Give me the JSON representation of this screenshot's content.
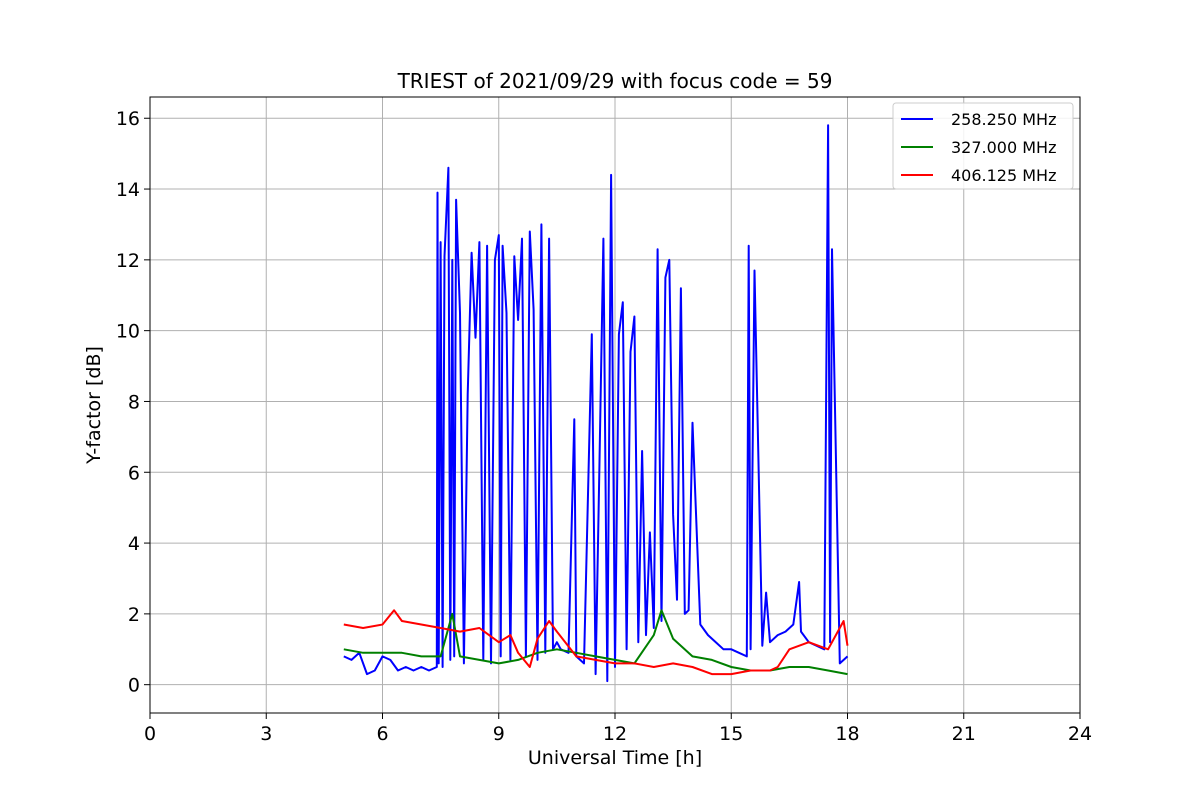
{
  "chart_data": {
    "type": "line",
    "title": "TRIEST of 2021/09/29 with focus code = 59",
    "xlabel": "Universal Time [h]",
    "ylabel": "Y-factor [dB]",
    "xlim": [
      0,
      24
    ],
    "ylim": [
      -0.8,
      16.6
    ],
    "xticks": [
      0,
      3,
      6,
      9,
      12,
      15,
      18,
      21,
      24
    ],
    "yticks": [
      0,
      2,
      4,
      6,
      8,
      10,
      12,
      14,
      16
    ],
    "grid": true,
    "legend_position": "top-right",
    "series": [
      {
        "name": "258.250 MHz",
        "color": "#0000ff",
        "x": [
          5.0,
          5.2,
          5.4,
          5.6,
          5.8,
          6.0,
          6.2,
          6.4,
          6.6,
          6.8,
          7.0,
          7.2,
          7.4,
          7.42,
          7.45,
          7.5,
          7.55,
          7.6,
          7.7,
          7.75,
          7.8,
          7.85,
          7.9,
          8.0,
          8.1,
          8.2,
          8.3,
          8.4,
          8.5,
          8.6,
          8.7,
          8.8,
          8.9,
          9.0,
          9.05,
          9.1,
          9.2,
          9.3,
          9.4,
          9.5,
          9.6,
          9.7,
          9.8,
          9.9,
          10.0,
          10.1,
          10.2,
          10.3,
          10.4,
          10.5,
          10.6,
          10.8,
          10.95,
          11.0,
          11.2,
          11.4,
          11.5,
          11.6,
          11.7,
          11.8,
          11.9,
          12.0,
          12.1,
          12.2,
          12.3,
          12.4,
          12.5,
          12.6,
          12.7,
          12.8,
          12.9,
          13.0,
          13.1,
          13.2,
          13.3,
          13.4,
          13.5,
          13.6,
          13.7,
          13.8,
          13.9,
          14.0,
          14.2,
          14.4,
          14.6,
          14.8,
          15.0,
          15.2,
          15.4,
          15.45,
          15.5,
          15.6,
          15.8,
          15.9,
          16.0,
          16.2,
          16.4,
          16.6,
          16.75,
          16.8,
          17.0,
          17.2,
          17.4,
          17.5,
          17.55,
          17.6,
          17.8,
          18.0
        ],
        "values": [
          0.8,
          0.7,
          0.9,
          0.3,
          0.4,
          0.8,
          0.7,
          0.4,
          0.5,
          0.4,
          0.5,
          0.4,
          0.5,
          13.9,
          0.6,
          12.5,
          0.5,
          12.1,
          14.6,
          0.7,
          12.0,
          0.8,
          13.7,
          10.5,
          0.6,
          8.2,
          12.2,
          9.8,
          12.5,
          0.7,
          12.4,
          0.6,
          12.0,
          12.7,
          0.8,
          12.4,
          10.5,
          0.7,
          12.1,
          10.3,
          12.6,
          0.8,
          12.8,
          10.6,
          0.7,
          13.0,
          0.9,
          12.6,
          1.0,
          1.2,
          1.0,
          0.9,
          7.5,
          0.8,
          0.6,
          9.9,
          0.3,
          6.3,
          12.6,
          0.1,
          14.4,
          0.5,
          9.9,
          10.8,
          1.0,
          9.4,
          10.4,
          1.2,
          6.6,
          1.4,
          4.3,
          1.6,
          12.3,
          1.8,
          11.5,
          12.0,
          4.8,
          2.4,
          11.2,
          2.0,
          2.1,
          7.4,
          1.7,
          1.4,
          1.2,
          1.0,
          1.0,
          0.9,
          0.8,
          12.4,
          1.0,
          11.7,
          1.1,
          2.6,
          1.2,
          1.4,
          1.5,
          1.7,
          2.9,
          1.5,
          1.2,
          1.1,
          1.0,
          15.8,
          1.2,
          12.3,
          0.6,
          0.8
        ]
      },
      {
        "name": "327.000 MHz",
        "color": "#008000",
        "x": [
          5.0,
          5.5,
          6.0,
          6.5,
          7.0,
          7.5,
          7.8,
          8.0,
          8.5,
          9.0,
          9.5,
          10.0,
          10.5,
          11.0,
          11.5,
          12.0,
          12.5,
          13.0,
          13.2,
          13.5,
          14.0,
          14.5,
          15.0,
          15.5,
          16.0,
          16.5,
          17.0,
          17.5,
          18.0
        ],
        "values": [
          1.0,
          0.9,
          0.9,
          0.9,
          0.8,
          0.8,
          2.0,
          0.8,
          0.7,
          0.6,
          0.7,
          0.9,
          1.0,
          0.9,
          0.8,
          0.7,
          0.6,
          1.4,
          2.1,
          1.3,
          0.8,
          0.7,
          0.5,
          0.4,
          0.4,
          0.5,
          0.5,
          0.4,
          0.3
        ]
      },
      {
        "name": "406.125 MHz",
        "color": "#ff0000",
        "x": [
          5.0,
          5.5,
          6.0,
          6.3,
          6.5,
          7.0,
          7.5,
          8.0,
          8.5,
          9.0,
          9.3,
          9.5,
          9.8,
          10.0,
          10.3,
          10.5,
          11.0,
          11.5,
          12.0,
          12.5,
          13.0,
          13.5,
          14.0,
          14.5,
          15.0,
          15.5,
          16.0,
          16.2,
          16.5,
          17.0,
          17.5,
          17.9,
          18.0
        ],
        "values": [
          1.7,
          1.6,
          1.7,
          2.1,
          1.8,
          1.7,
          1.6,
          1.5,
          1.6,
          1.2,
          1.4,
          0.9,
          0.5,
          1.3,
          1.8,
          1.5,
          0.8,
          0.7,
          0.6,
          0.6,
          0.5,
          0.6,
          0.5,
          0.3,
          0.3,
          0.4,
          0.4,
          0.5,
          1.0,
          1.2,
          1.0,
          1.8,
          1.1
        ]
      }
    ]
  }
}
